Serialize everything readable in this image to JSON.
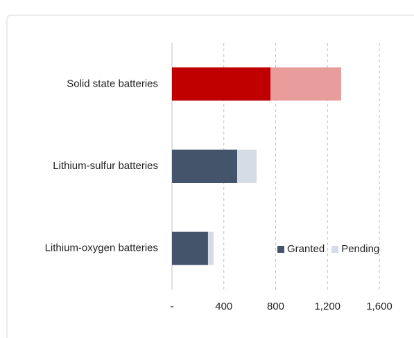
{
  "chart_data": {
    "type": "stacked-bar-horizontal",
    "categories": [
      "Solid state batteries",
      "Lithium-sulfur batteries",
      "Lithium-oxygen batteries"
    ],
    "series": [
      {
        "name": "Granted",
        "color": "#44546a",
        "point_colors": [
          "#c00000",
          "#44546a",
          "#44546a"
        ],
        "values": [
          760,
          503,
          278
        ]
      },
      {
        "name": "Pending",
        "color": "#d6dce5",
        "point_colors": [
          "#e99c9c",
          "#d6dce5",
          "#d6dce5"
        ],
        "values": [
          545,
          150,
          43
        ]
      }
    ],
    "xlim": [
      0,
      1600
    ],
    "xticks": [
      {
        "value": 0,
        "label": "-"
      },
      400,
      800,
      {
        "value": 1200,
        "label": "1,200"
      },
      {
        "value": 1600,
        "label": "1,600"
      }
    ],
    "grid": true,
    "legend": "lower-right"
  }
}
